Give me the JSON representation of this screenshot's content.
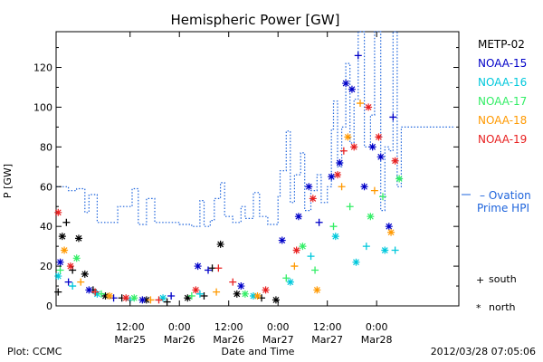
{
  "chart_data": {
    "type": "scatter",
    "title": "Hemispheric Power [GW]",
    "xlabel": "Date and Time",
    "ylabel": "P [GW]",
    "ylim": [
      0,
      138
    ],
    "xlim": [
      "2012-03-24T18:00",
      "2012-03-28T20:00"
    ],
    "y_ticks": [
      0,
      20,
      40,
      60,
      80,
      100,
      120
    ],
    "x_ticks": [
      {
        "time": "2012-03-25T12:00",
        "top": "12:00",
        "bottom": "Mar25"
      },
      {
        "time": "2012-03-26T00:00",
        "top": "0:00",
        "bottom": "Mar26"
      },
      {
        "time": "2012-03-26T12:00",
        "top": "12:00",
        "bottom": "Mar26"
      },
      {
        "time": "2012-03-27T00:00",
        "top": "0:00",
        "bottom": "Mar27"
      },
      {
        "time": "2012-03-27T12:00",
        "top": "12:00",
        "bottom": "Mar27"
      },
      {
        "time": "2012-03-28T00:00",
        "top": "0:00",
        "bottom": "Mar28"
      }
    ],
    "grid": false,
    "legend_position": "right",
    "series": [
      {
        "name": "METP-02",
        "color": "#000000",
        "points": [
          {
            "x": "2012-03-24T18:30",
            "y": 7,
            "m": "+"
          },
          {
            "x": "2012-03-24T19:30",
            "y": 35,
            "m": "*"
          },
          {
            "x": "2012-03-24T20:30",
            "y": 42,
            "m": "+"
          },
          {
            "x": "2012-03-24T22:00",
            "y": 18,
            "m": "+"
          },
          {
            "x": "2012-03-24T23:30",
            "y": 34,
            "m": "*"
          },
          {
            "x": "2012-03-25T01:00",
            "y": 16,
            "m": "*"
          },
          {
            "x": "2012-03-25T03:00",
            "y": 8,
            "m": "+"
          },
          {
            "x": "2012-03-25T06:00",
            "y": 5,
            "m": "*"
          },
          {
            "x": "2012-03-25T10:00",
            "y": 4,
            "m": "+"
          },
          {
            "x": "2012-03-25T16:00",
            "y": 3,
            "m": "*"
          },
          {
            "x": "2012-03-25T21:00",
            "y": 2,
            "m": "+"
          },
          {
            "x": "2012-03-26T02:00",
            "y": 4,
            "m": "*"
          },
          {
            "x": "2012-03-26T06:00",
            "y": 5,
            "m": "+"
          },
          {
            "x": "2012-03-26T10:00",
            "y": 31,
            "m": "*"
          },
          {
            "x": "2012-03-26T08:00",
            "y": 19,
            "m": "+"
          },
          {
            "x": "2012-03-26T14:00",
            "y": 6,
            "m": "*"
          },
          {
            "x": "2012-03-26T20:00",
            "y": 4,
            "m": "+"
          },
          {
            "x": "2012-03-26T23:30",
            "y": 3,
            "m": "*"
          }
        ]
      },
      {
        "name": "NOAA-15",
        "color": "#0000c8",
        "points": [
          {
            "x": "2012-03-24T19:00",
            "y": 22,
            "m": "*"
          },
          {
            "x": "2012-03-24T21:00",
            "y": 12,
            "m": "+"
          },
          {
            "x": "2012-03-25T02:00",
            "y": 8,
            "m": "*"
          },
          {
            "x": "2012-03-25T08:00",
            "y": 4,
            "m": "+"
          },
          {
            "x": "2012-03-25T15:00",
            "y": 3,
            "m": "*"
          },
          {
            "x": "2012-03-25T22:00",
            "y": 5,
            "m": "+"
          },
          {
            "x": "2012-03-26T04:30",
            "y": 20,
            "m": "*"
          },
          {
            "x": "2012-03-26T07:00",
            "y": 18,
            "m": "+"
          },
          {
            "x": "2012-03-26T15:00",
            "y": 10,
            "m": "*"
          },
          {
            "x": "2012-03-27T01:00",
            "y": 33,
            "m": "*"
          },
          {
            "x": "2012-03-27T05:00",
            "y": 45,
            "m": "*"
          },
          {
            "x": "2012-03-27T07:30",
            "y": 60,
            "m": "*"
          },
          {
            "x": "2012-03-27T10:00",
            "y": 42,
            "m": "+"
          },
          {
            "x": "2012-03-27T13:00",
            "y": 65,
            "m": "*"
          },
          {
            "x": "2012-03-27T15:00",
            "y": 72,
            "m": "*"
          },
          {
            "x": "2012-03-27T16:30",
            "y": 112,
            "m": "*"
          },
          {
            "x": "2012-03-27T18:00",
            "y": 109,
            "m": "*"
          },
          {
            "x": "2012-03-27T19:30",
            "y": 126,
            "m": "+"
          },
          {
            "x": "2012-03-27T21:00",
            "y": 60,
            "m": "*"
          },
          {
            "x": "2012-03-27T23:00",
            "y": 80,
            "m": "*"
          },
          {
            "x": "2012-03-28T01:00",
            "y": 75,
            "m": "*"
          },
          {
            "x": "2012-03-28T03:00",
            "y": 40,
            "m": "*"
          },
          {
            "x": "2012-03-28T04:00",
            "y": 95,
            "m": "+"
          }
        ]
      },
      {
        "name": "NOAA-16",
        "color": "#00c8dc",
        "points": [
          {
            "x": "2012-03-24T18:30",
            "y": 15,
            "m": "*"
          },
          {
            "x": "2012-03-24T22:00",
            "y": 10,
            "m": "+"
          },
          {
            "x": "2012-03-25T04:00",
            "y": 6,
            "m": "*"
          },
          {
            "x": "2012-03-25T12:00",
            "y": 3,
            "m": "+"
          },
          {
            "x": "2012-03-25T20:00",
            "y": 4,
            "m": "*"
          },
          {
            "x": "2012-03-26T05:00",
            "y": 6,
            "m": "+"
          },
          {
            "x": "2012-03-26T18:00",
            "y": 5,
            "m": "*"
          },
          {
            "x": "2012-03-27T03:00",
            "y": 12,
            "m": "*"
          },
          {
            "x": "2012-03-27T08:00",
            "y": 25,
            "m": "+"
          },
          {
            "x": "2012-03-27T14:00",
            "y": 35,
            "m": "*"
          },
          {
            "x": "2012-03-27T19:00",
            "y": 22,
            "m": "*"
          },
          {
            "x": "2012-03-27T21:30",
            "y": 30,
            "m": "+"
          },
          {
            "x": "2012-03-28T02:00",
            "y": 28,
            "m": "*"
          },
          {
            "x": "2012-03-28T04:30",
            "y": 28,
            "m": "+"
          }
        ]
      },
      {
        "name": "NOAA-17",
        "color": "#33ee66",
        "points": [
          {
            "x": "2012-03-24T19:00",
            "y": 18,
            "m": "+"
          },
          {
            "x": "2012-03-24T23:00",
            "y": 24,
            "m": "*"
          },
          {
            "x": "2012-03-25T05:00",
            "y": 6,
            "m": "+"
          },
          {
            "x": "2012-03-25T13:00",
            "y": 4,
            "m": "*"
          },
          {
            "x": "2012-03-26T03:00",
            "y": 5,
            "m": "+"
          },
          {
            "x": "2012-03-26T16:00",
            "y": 6,
            "m": "*"
          },
          {
            "x": "2012-03-27T02:00",
            "y": 14,
            "m": "+"
          },
          {
            "x": "2012-03-27T06:00",
            "y": 30,
            "m": "*"
          },
          {
            "x": "2012-03-27T09:00",
            "y": 18,
            "m": "+"
          },
          {
            "x": "2012-03-27T13:30",
            "y": 40,
            "m": "+"
          },
          {
            "x": "2012-03-27T17:30",
            "y": 50,
            "m": "+"
          },
          {
            "x": "2012-03-27T22:30",
            "y": 45,
            "m": "*"
          },
          {
            "x": "2012-03-28T01:30",
            "y": 55,
            "m": "+"
          },
          {
            "x": "2012-03-28T05:30",
            "y": 64,
            "m": "*"
          }
        ]
      },
      {
        "name": "NOAA-18",
        "color": "#ff9900",
        "points": [
          {
            "x": "2012-03-24T20:00",
            "y": 28,
            "m": "*"
          },
          {
            "x": "2012-03-25T00:00",
            "y": 12,
            "m": "+"
          },
          {
            "x": "2012-03-25T07:00",
            "y": 5,
            "m": "*"
          },
          {
            "x": "2012-03-25T17:00",
            "y": 3,
            "m": "+"
          },
          {
            "x": "2012-03-26T09:00",
            "y": 7,
            "m": "+"
          },
          {
            "x": "2012-03-26T19:00",
            "y": 5,
            "m": "*"
          },
          {
            "x": "2012-03-27T04:00",
            "y": 20,
            "m": "+"
          },
          {
            "x": "2012-03-27T09:30",
            "y": 8,
            "m": "*"
          },
          {
            "x": "2012-03-27T15:30",
            "y": 60,
            "m": "+"
          },
          {
            "x": "2012-03-27T17:00",
            "y": 85,
            "m": "*"
          },
          {
            "x": "2012-03-27T20:00",
            "y": 102,
            "m": "+"
          },
          {
            "x": "2012-03-27T23:30",
            "y": 58,
            "m": "+"
          },
          {
            "x": "2012-03-28T03:30",
            "y": 37,
            "m": "*"
          }
        ]
      },
      {
        "name": "NOAA-19",
        "color": "#e82020",
        "points": [
          {
            "x": "2012-03-24T18:30",
            "y": 47,
            "m": "*"
          },
          {
            "x": "2012-03-24T21:30",
            "y": 20,
            "m": "*"
          },
          {
            "x": "2012-03-25T03:30",
            "y": 7,
            "m": "+"
          },
          {
            "x": "2012-03-25T11:00",
            "y": 4,
            "m": "*"
          },
          {
            "x": "2012-03-25T19:00",
            "y": 3,
            "m": "+"
          },
          {
            "x": "2012-03-26T04:00",
            "y": 8,
            "m": "*"
          },
          {
            "x": "2012-03-26T09:30",
            "y": 19,
            "m": "+"
          },
          {
            "x": "2012-03-26T13:00",
            "y": 12,
            "m": "+"
          },
          {
            "x": "2012-03-26T21:00",
            "y": 8,
            "m": "*"
          },
          {
            "x": "2012-03-27T04:30",
            "y": 28,
            "m": "*"
          },
          {
            "x": "2012-03-27T08:30",
            "y": 54,
            "m": "*"
          },
          {
            "x": "2012-03-27T14:30",
            "y": 66,
            "m": "*"
          },
          {
            "x": "2012-03-27T16:00",
            "y": 78,
            "m": "+"
          },
          {
            "x": "2012-03-27T18:30",
            "y": 80,
            "m": "*"
          },
          {
            "x": "2012-03-27T22:00",
            "y": 100,
            "m": "*"
          },
          {
            "x": "2012-03-28T00:30",
            "y": 85,
            "m": "*"
          },
          {
            "x": "2012-03-28T04:30",
            "y": 73,
            "m": "*"
          }
        ]
      }
    ],
    "ovation": {
      "name": "– Ovation Prime HPI",
      "color": "#1e64dc",
      "points": [
        {
          "x": "2012-03-24T18:00",
          "y": 60
        },
        {
          "x": "2012-03-24T21:00",
          "y": 58
        },
        {
          "x": "2012-03-24T23:00",
          "y": 59
        },
        {
          "x": "2012-03-25T01:00",
          "y": 47
        },
        {
          "x": "2012-03-25T02:00",
          "y": 56
        },
        {
          "x": "2012-03-25T04:00",
          "y": 42
        },
        {
          "x": "2012-03-25T07:00",
          "y": 42
        },
        {
          "x": "2012-03-25T09:00",
          "y": 50
        },
        {
          "x": "2012-03-25T11:00",
          "y": 50
        },
        {
          "x": "2012-03-25T12:30",
          "y": 59
        },
        {
          "x": "2012-03-25T14:00",
          "y": 41
        },
        {
          "x": "2012-03-25T16:00",
          "y": 54
        },
        {
          "x": "2012-03-25T18:00",
          "y": 42
        },
        {
          "x": "2012-03-25T22:00",
          "y": 42
        },
        {
          "x": "2012-03-26T00:00",
          "y": 41
        },
        {
          "x": "2012-03-26T03:00",
          "y": 40
        },
        {
          "x": "2012-03-26T05:00",
          "y": 53
        },
        {
          "x": "2012-03-26T06:00",
          "y": 40
        },
        {
          "x": "2012-03-26T07:30",
          "y": 43
        },
        {
          "x": "2012-03-26T08:30",
          "y": 54
        },
        {
          "x": "2012-03-26T10:00",
          "y": 62
        },
        {
          "x": "2012-03-26T11:00",
          "y": 45
        },
        {
          "x": "2012-03-26T13:00",
          "y": 42
        },
        {
          "x": "2012-03-26T15:00",
          "y": 50
        },
        {
          "x": "2012-03-26T16:00",
          "y": 44
        },
        {
          "x": "2012-03-26T18:00",
          "y": 57
        },
        {
          "x": "2012-03-26T19:30",
          "y": 45
        },
        {
          "x": "2012-03-26T21:30",
          "y": 41
        },
        {
          "x": "2012-03-27T00:00",
          "y": 55
        },
        {
          "x": "2012-03-27T00:30",
          "y": 68
        },
        {
          "x": "2012-03-27T02:00",
          "y": 88
        },
        {
          "x": "2012-03-27T03:00",
          "y": 52
        },
        {
          "x": "2012-03-27T04:00",
          "y": 66
        },
        {
          "x": "2012-03-27T05:30",
          "y": 77
        },
        {
          "x": "2012-03-27T06:30",
          "y": 48
        },
        {
          "x": "2012-03-27T08:00",
          "y": 58
        },
        {
          "x": "2012-03-27T09:30",
          "y": 66
        },
        {
          "x": "2012-03-27T10:30",
          "y": 52
        },
        {
          "x": "2012-03-27T12:00",
          "y": 60
        },
        {
          "x": "2012-03-27T13:00",
          "y": 89
        },
        {
          "x": "2012-03-27T13:30",
          "y": 103
        },
        {
          "x": "2012-03-27T14:30",
          "y": 70
        },
        {
          "x": "2012-03-27T15:30",
          "y": 90
        },
        {
          "x": "2012-03-27T16:30",
          "y": 122
        },
        {
          "x": "2012-03-27T17:30",
          "y": 82
        },
        {
          "x": "2012-03-27T18:30",
          "y": 104
        },
        {
          "x": "2012-03-27T19:30",
          "y": 138
        },
        {
          "x": "2012-03-27T21:00",
          "y": 80
        },
        {
          "x": "2012-03-27T22:30",
          "y": 96
        },
        {
          "x": "2012-03-27T23:30",
          "y": 138
        },
        {
          "x": "2012-03-28T01:00",
          "y": 48
        },
        {
          "x": "2012-03-28T02:00",
          "y": 80
        },
        {
          "x": "2012-03-28T03:00",
          "y": 78
        },
        {
          "x": "2012-03-28T04:00",
          "y": 138
        },
        {
          "x": "2012-03-28T05:00",
          "y": 60
        },
        {
          "x": "2012-03-28T06:00",
          "y": 90
        }
      ]
    },
    "marker_legend": [
      {
        "symbol": "+",
        "label": "south"
      },
      {
        "symbol": "*",
        "label": "north"
      }
    ],
    "footer": {
      "left": "Plot: CCMC",
      "right": "2012/03/28 07:05:06"
    }
  }
}
